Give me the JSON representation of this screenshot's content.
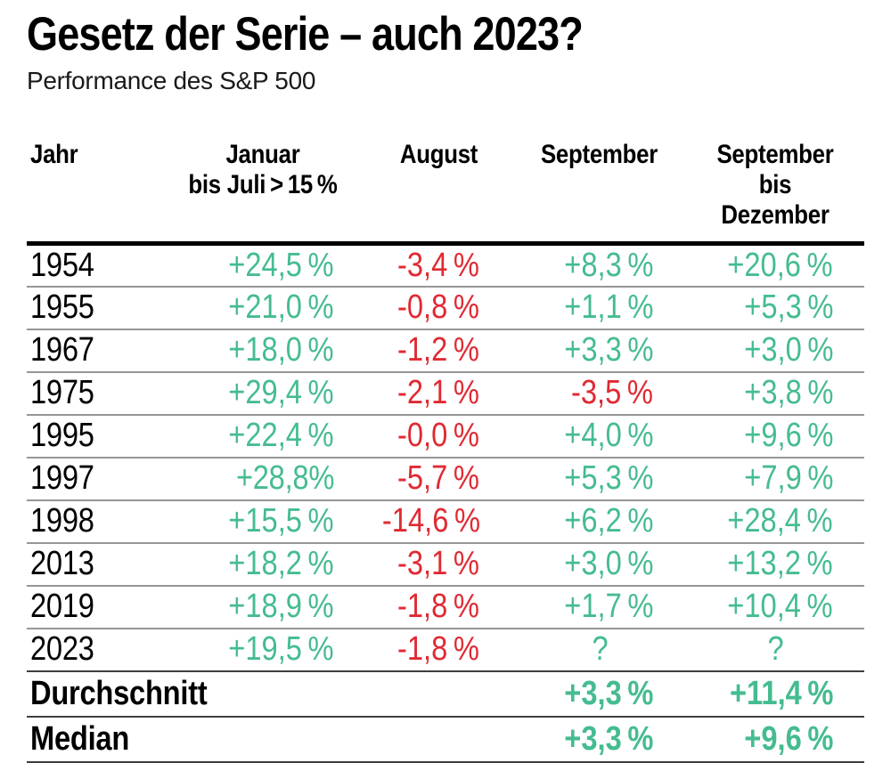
{
  "title": "Gesetz der Serie – auch 2023?",
  "subtitle": "Performance des S&P 500",
  "colors": {
    "positive": "#45bc90",
    "negative": "#e02a33",
    "header_rule": "#000000",
    "row_rule": "#969696",
    "strong_rule": "#3e3e3e"
  },
  "header": {
    "col_year": "Jahr",
    "col_jan_l1": "Januar",
    "col_jan_l2": "bis Juli > 15 %",
    "col_aug": "August",
    "col_sep": "September",
    "col_sepdez_l1": "September bis",
    "col_sepdez_l2": "Dezember"
  },
  "rows": [
    {
      "year": "1954",
      "jan_jul": "+24,5 %",
      "aug": "-3,4 %",
      "sep": "+8,3 %",
      "sep_dez": "+20,6 %"
    },
    {
      "year": "1955",
      "jan_jul": "+21,0 %",
      "aug": "-0,8 %",
      "sep": "+1,1 %",
      "sep_dez": "+5,3 %"
    },
    {
      "year": "1967",
      "jan_jul": "+18,0 %",
      "aug": "-1,2 %",
      "sep": "+3,3 %",
      "sep_dez": "+3,0 %"
    },
    {
      "year": "1975",
      "jan_jul": "+29,4 %",
      "aug": "-2,1 %",
      "sep": "-3,5 %",
      "sep_dez": "+3,8 %"
    },
    {
      "year": "1995",
      "jan_jul": "+22,4 %",
      "aug": "-0,0 %",
      "sep": "+4,0 %",
      "sep_dez": "+9,6 %"
    },
    {
      "year": "1997",
      "jan_jul": "+28,8%",
      "aug": "-5,7 %",
      "sep": "+5,3 %",
      "sep_dez": "+7,9 %"
    },
    {
      "year": "1998",
      "jan_jul": "+15,5 %",
      "aug": "-14,6 %",
      "sep": "+6,2 %",
      "sep_dez": "+28,4 %"
    },
    {
      "year": "2013",
      "jan_jul": "+18,2 %",
      "aug": "-3,1 %",
      "sep": "+3,0 %",
      "sep_dez": "+13,2 %"
    },
    {
      "year": "2019",
      "jan_jul": "+18,9 %",
      "aug": "-1,8 %",
      "sep": "+1,7 %",
      "sep_dez": "+10,4 %"
    },
    {
      "year": "2023",
      "jan_jul": "+19,5 %",
      "aug": "-1,8 %",
      "sep": "?",
      "sep_dez": "?"
    }
  ],
  "summary": [
    {
      "label": "Durchschnitt",
      "sep": "+3,3 %",
      "sep_dez": "+11,4 %"
    },
    {
      "label": "Median",
      "sep": "+3,3 %",
      "sep_dez": "+9,6 %"
    }
  ],
  "chart_data": {
    "type": "table",
    "title": "Gesetz der Serie – auch 2023?",
    "subtitle": "Performance des S&P 500",
    "columns": [
      "Jahr",
      "Januar bis Juli > 15 %",
      "August",
      "September",
      "September bis Dezember"
    ],
    "rows": [
      {
        "Jahr": 1954,
        "Januar_bis_Juli": 24.5,
        "August": -3.4,
        "September": 8.3,
        "September_bis_Dezember": 20.6
      },
      {
        "Jahr": 1955,
        "Januar_bis_Juli": 21.0,
        "August": -0.8,
        "September": 1.1,
        "September_bis_Dezember": 5.3
      },
      {
        "Jahr": 1967,
        "Januar_bis_Juli": 18.0,
        "August": -1.2,
        "September": 3.3,
        "September_bis_Dezember": 3.0
      },
      {
        "Jahr": 1975,
        "Januar_bis_Juli": 29.4,
        "August": -2.1,
        "September": -3.5,
        "September_bis_Dezember": 3.8
      },
      {
        "Jahr": 1995,
        "Januar_bis_Juli": 22.4,
        "August": -0.0,
        "September": 4.0,
        "September_bis_Dezember": 9.6
      },
      {
        "Jahr": 1997,
        "Januar_bis_Juli": 28.8,
        "August": -5.7,
        "September": 5.3,
        "September_bis_Dezember": 7.9
      },
      {
        "Jahr": 1998,
        "Januar_bis_Juli": 15.5,
        "August": -14.6,
        "September": 6.2,
        "September_bis_Dezember": 28.4
      },
      {
        "Jahr": 2013,
        "Januar_bis_Juli": 18.2,
        "August": -3.1,
        "September": 3.0,
        "September_bis_Dezember": 13.2
      },
      {
        "Jahr": 2019,
        "Januar_bis_Juli": 18.9,
        "August": -1.8,
        "September": 1.7,
        "September_bis_Dezember": 10.4
      },
      {
        "Jahr": 2023,
        "Januar_bis_Juli": 19.5,
        "August": -1.8,
        "September": null,
        "September_bis_Dezember": null
      }
    ],
    "summary_rows": [
      {
        "label": "Durchschnitt",
        "September": 3.3,
        "September_bis_Dezember": 11.4
      },
      {
        "label": "Median",
        "September": 3.3,
        "September_bis_Dezember": 9.6
      }
    ],
    "value_unit": "%",
    "positive_color": "#45bc90",
    "negative_color": "#e02a33"
  }
}
